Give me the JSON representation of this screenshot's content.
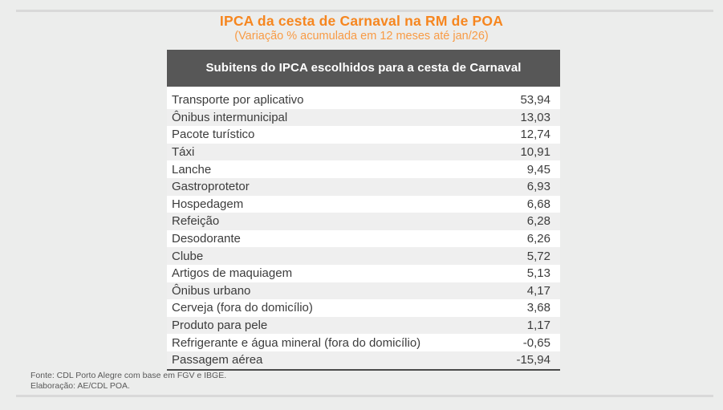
{
  "page": {
    "title": "IPCA da cesta de Carnaval na RM de POA",
    "subtitle": "(Variação % acumulada em 12 meses até jan/26)"
  },
  "table": {
    "header": "Subitens do IPCA escolhidos para a cesta de Carnaval",
    "rows": [
      {
        "label": "Transporte por aplicativo",
        "value": "53,94"
      },
      {
        "label": "Ônibus intermunicipal",
        "value": "13,03"
      },
      {
        "label": "Pacote turístico",
        "value": "12,74"
      },
      {
        "label": "Táxi",
        "value": "10,91"
      },
      {
        "label": "Lanche",
        "value": "9,45"
      },
      {
        "label": "Gastroprotetor",
        "value": "6,93"
      },
      {
        "label": "Hospedagem",
        "value": "6,68"
      },
      {
        "label": "Refeição",
        "value": "6,28"
      },
      {
        "label": "Desodorante",
        "value": "6,26"
      },
      {
        "label": "Clube",
        "value": "5,72"
      },
      {
        "label": "Artigos de maquiagem",
        "value": "5,13"
      },
      {
        "label": "Ônibus urbano",
        "value": "4,17"
      },
      {
        "label": "Cerveja (fora do domicílio)",
        "value": "3,68"
      },
      {
        "label": "Produto para pele",
        "value": "1,17"
      },
      {
        "label": "Refrigerante e água mineral (fora do domicílio)",
        "value": "-0,65"
      },
      {
        "label": "Passagem aérea",
        "value": "-15,94"
      }
    ]
  },
  "footer": {
    "source": "Fonte: CDL Porto Alegre com base em FGV e IBGE.",
    "elaboration": "Elaboração: AE/CDL POA."
  },
  "colors": {
    "title_orange": "#F6861F",
    "subtitle_orange": "#F89B45",
    "header_bar": "#575757",
    "band_gray": "#EFEFEF",
    "rule_gray": "#D9D9D9",
    "text_dark": "#3C3C3C"
  },
  "chart_data": {
    "type": "table",
    "title": "IPCA da cesta de Carnaval na RM de POA",
    "subtitle": "(Variação % acumulada em 12 meses até jan/26)",
    "columns": [
      "Subitens do IPCA escolhidos para a cesta de Carnaval",
      "Variação % acumulada em 12 meses até jan/26"
    ],
    "categories": [
      "Transporte por aplicativo",
      "Ônibus intermunicipal",
      "Pacote turístico",
      "Táxi",
      "Lanche",
      "Gastroprotetor",
      "Hospedagem",
      "Refeição",
      "Desodorante",
      "Clube",
      "Artigos de maquiagem",
      "Ônibus urbano",
      "Cerveja (fora do domicílio)",
      "Produto para pele",
      "Refrigerante e água mineral (fora do domicílio)",
      "Passagem aérea"
    ],
    "values": [
      53.94,
      13.03,
      12.74,
      10.91,
      9.45,
      6.93,
      6.68,
      6.28,
      6.26,
      5.72,
      5.13,
      4.17,
      3.68,
      1.17,
      -0.65,
      -15.94
    ],
    "source": "Fonte: CDL Porto Alegre com base em FGV e IBGE.",
    "elaboration": "Elaboração: AE/CDL POA."
  }
}
